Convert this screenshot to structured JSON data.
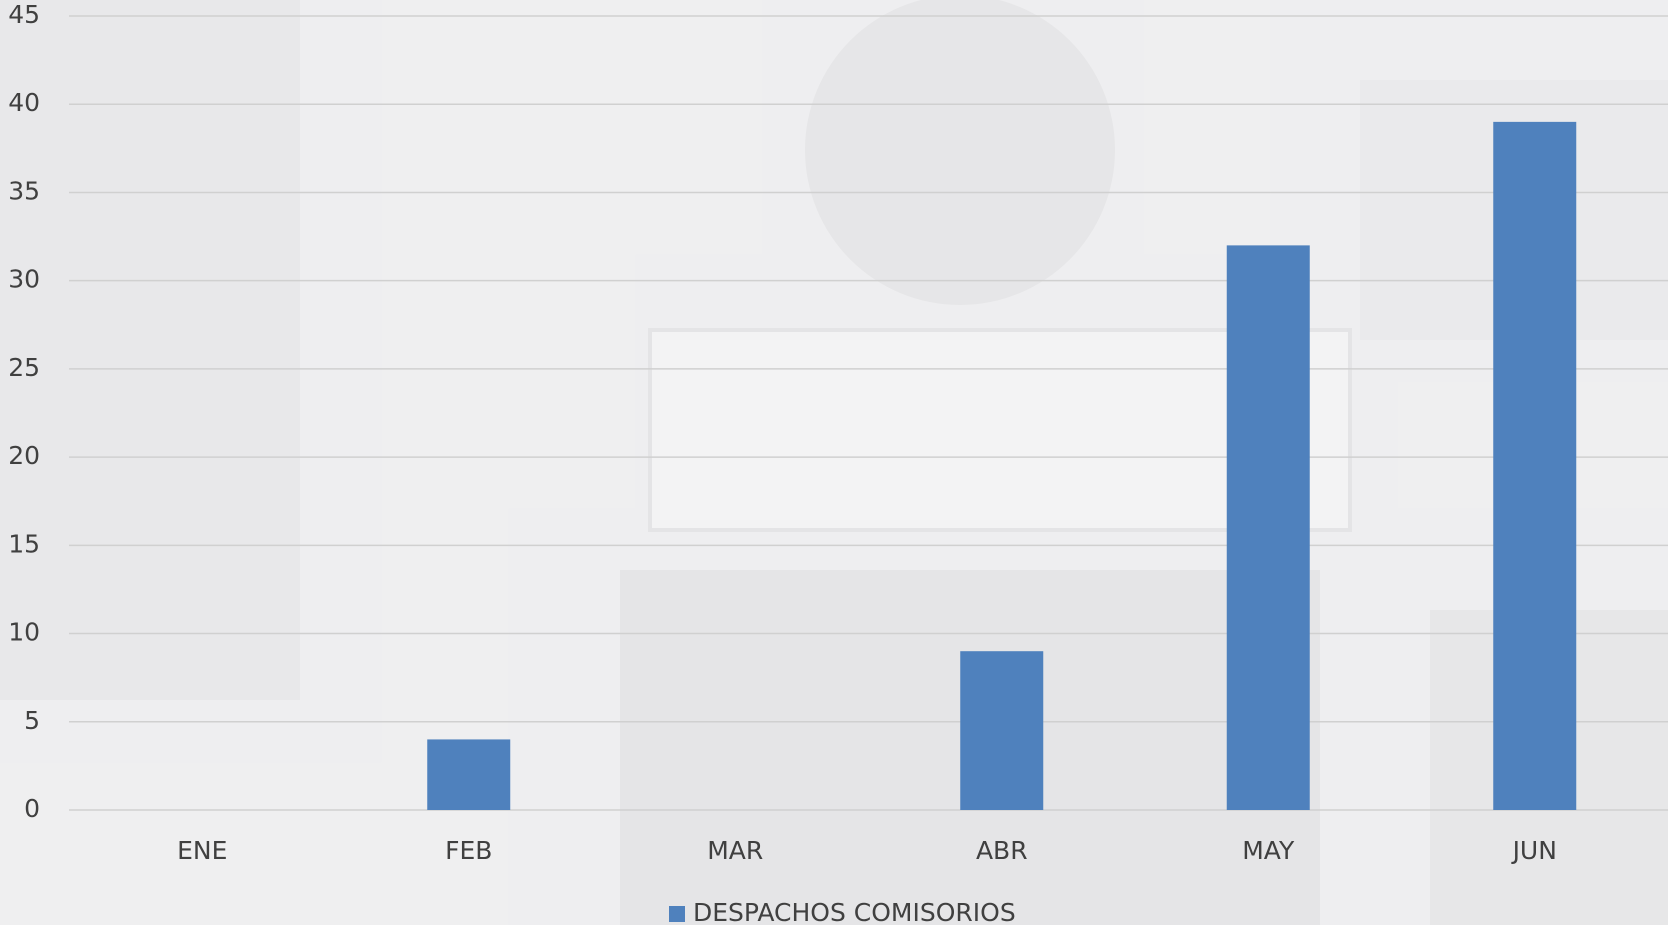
{
  "chart_data": {
    "type": "bar",
    "categories": [
      "ENE",
      "FEB",
      "MAR",
      "ABR",
      "MAY",
      "JUN"
    ],
    "series": [
      {
        "name": "DESPACHOS COMISORIOS",
        "color": "#4f81bd",
        "values": [
          0,
          4,
          0,
          9,
          32,
          39
        ]
      }
    ],
    "ylim": [
      0,
      45
    ],
    "yticks": [
      0,
      5,
      10,
      15,
      20,
      25,
      30,
      35,
      40,
      45
    ],
    "grid": true,
    "legend": "bottom"
  }
}
